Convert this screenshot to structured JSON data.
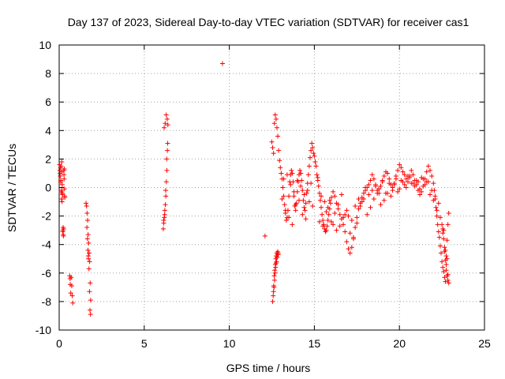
{
  "chart_data": {
    "type": "scatter",
    "title": "Day 137 of 2023, Sidereal Day-to-day VTEC variation (SDTVAR) for receiver cas1",
    "xlabel": "GPS time / hours",
    "ylabel": "SDTVAR / TECUs",
    "xlim": [
      0,
      25
    ],
    "ylim": [
      -10,
      10
    ],
    "xticks": [
      0,
      5,
      10,
      15,
      20,
      25
    ],
    "yticks": [
      -10,
      -8,
      -6,
      -4,
      -2,
      0,
      2,
      4,
      6,
      8,
      10
    ],
    "xtick_labels": [
      "0",
      "5",
      "10",
      "15",
      "20",
      "25"
    ],
    "ytick_labels": [
      "-10",
      "-8",
      "-6",
      "-4",
      "-2",
      "0",
      "2",
      "4",
      "6",
      "8",
      "10"
    ],
    "grid": true,
    "marker": "+",
    "color": "#ff0000",
    "series": [
      {
        "name": "SDTVAR",
        "x": [
          0.02,
          0.04,
          0.06,
          0.08,
          0.1,
          0.12,
          0.14,
          0.16,
          0.18,
          0.2,
          0.22,
          0.24,
          0.26,
          0.28,
          0.3,
          0.32,
          0.05,
          0.09,
          0.13,
          0.17,
          0.21,
          0.25,
          0.29,
          0.11,
          0.15,
          0.19,
          0.23,
          0.27,
          0.31,
          0.33,
          0.62,
          0.65,
          0.68,
          0.71,
          0.74,
          0.77,
          0.8,
          0.64,
          1.58,
          1.61,
          1.64,
          1.67,
          1.7,
          1.73,
          1.76,
          1.79,
          1.82,
          1.85,
          1.63,
          1.69,
          1.75,
          1.81,
          1.66,
          1.72,
          1.78,
          1.84,
          1.71,
          6.12,
          6.15,
          6.18,
          6.21,
          6.24,
          6.27,
          6.3,
          6.33,
          6.36,
          6.39,
          6.14,
          6.2,
          6.26,
          6.32,
          6.38,
          6.17,
          6.23,
          6.29,
          6.35,
          9.6,
          12.1,
          12.55,
          12.58,
          12.61,
          12.64,
          12.67,
          12.7,
          12.73,
          12.76,
          12.79,
          12.82,
          12.85,
          12.88,
          12.6,
          12.66,
          12.72,
          12.78,
          12.84,
          12.63,
          12.69,
          12.75,
          12.81,
          12.87,
          12.5,
          12.55,
          12.6,
          12.65,
          12.7,
          12.75,
          12.8,
          12.85,
          12.9,
          12.95,
          13.0,
          13.05,
          13.1,
          13.15,
          13.2,
          13.25,
          13.3,
          13.35,
          13.4,
          13.45,
          13.5,
          13.55,
          13.6,
          13.65,
          13.7,
          13.75,
          13.8,
          13.85,
          13.9,
          13.95,
          14.0,
          14.05,
          14.1,
          14.15,
          14.2,
          14.25,
          14.3,
          14.35,
          14.4,
          14.45,
          14.5,
          14.55,
          14.6,
          14.65,
          14.7,
          14.75,
          14.8,
          14.85,
          14.9,
          14.95,
          15.0,
          15.05,
          15.1,
          15.15,
          15.2,
          15.25,
          15.3,
          15.35,
          15.4,
          15.45,
          15.5,
          15.55,
          15.6,
          15.65,
          15.7,
          15.75,
          15.8,
          15.85,
          15.9,
          15.95,
          16.0,
          16.1,
          16.2,
          16.3,
          16.4,
          16.5,
          16.6,
          16.7,
          16.8,
          16.9,
          17.0,
          17.1,
          17.2,
          17.3,
          17.4,
          17.5,
          17.6,
          17.7,
          17.8,
          17.9,
          18.0,
          18.1,
          18.2,
          18.3,
          18.4,
          18.5,
          18.6,
          18.7,
          18.8,
          18.9,
          19.0,
          19.1,
          19.2,
          19.3,
          19.4,
          19.5,
          19.6,
          19.7,
          19.8,
          19.9,
          20.0,
          20.1,
          20.2,
          20.3,
          20.4,
          20.5,
          20.6,
          20.7,
          20.8,
          20.9,
          21.0,
          21.1,
          21.2,
          21.3,
          21.4,
          21.5,
          21.6,
          21.7,
          21.8,
          21.9,
          22.0,
          22.05,
          22.1,
          22.15,
          22.2,
          22.25,
          22.3,
          22.35,
          22.4,
          22.45,
          22.5,
          22.55,
          22.6,
          22.65,
          22.7,
          22.75,
          22.8,
          22.85,
          22.9,
          13.1,
          13.3,
          13.5,
          13.7,
          13.9,
          14.1,
          14.3,
          14.5,
          14.7,
          14.9,
          15.3,
          15.5,
          15.7,
          15.9,
          16.1,
          16.3,
          16.5,
          16.7,
          16.9,
          17.1,
          17.3,
          17.5,
          17.7,
          17.9,
          18.1,
          18.3,
          18.5,
          18.7,
          18.9,
          19.1,
          19.3,
          19.5,
          19.7,
          19.9,
          20.1,
          20.3,
          20.5,
          20.7,
          20.9,
          21.1,
          21.3,
          21.5,
          21.7,
          21.9,
          22.1,
          22.3,
          13.2,
          13.4,
          13.6,
          13.8,
          14.0,
          14.2,
          14.4,
          14.6,
          14.8,
          15.2,
          15.4,
          15.6,
          15.8,
          16.0,
          16.2,
          16.4,
          16.6,
          16.8,
          17.0,
          17.2,
          17.4,
          17.6,
          17.8,
          18.0,
          18.2,
          18.4,
          18.6,
          18.8,
          19.0,
          19.2,
          19.4,
          19.6,
          19.8,
          20.0,
          20.2,
          20.4,
          20.6,
          20.8,
          21.0,
          21.2,
          21.4,
          21.6,
          21.8,
          22.0,
          22.2,
          22.4,
          22.5,
          22.55,
          22.6,
          22.65,
          22.7,
          22.75,
          22.8,
          22.85,
          22.9,
          22.55,
          22.65,
          22.75,
          22.85,
          22.6,
          22.7,
          22.8
        ],
        "y": [
          1.6,
          1.2,
          0.8,
          1.4,
          0.5,
          -0.3,
          -0.8,
          1.1,
          0.2,
          -0.5,
          -3.0,
          -3.3,
          -2.9,
          0.9,
          1.3,
          -0.6,
          1.0,
          0.4,
          -0.2,
          -1.0,
          -3.1,
          -3.4,
          0.6,
          1.5,
          1.8,
          -0.4,
          -2.8,
          1.2,
          -0.1,
          -0.7,
          -6.2,
          -6.8,
          -7.4,
          -6.3,
          -6.9,
          -7.6,
          -8.1,
          -6.4,
          -1.1,
          -1.3,
          -1.8,
          -2.3,
          -3.3,
          -3.9,
          -4.6,
          -5.2,
          -6.7,
          -7.9,
          -2.8,
          -4.4,
          -5.7,
          -8.6,
          -3.6,
          -5.0,
          -7.3,
          -8.9,
          -4.8,
          -2.9,
          -2.5,
          -2.1,
          -1.6,
          -1.2,
          -0.6,
          0.4,
          1.2,
          2.6,
          4.4,
          -2.3,
          -1.9,
          -0.2,
          2.0,
          3.1,
          4.2,
          4.5,
          5.1,
          4.8,
          8.7,
          -3.4,
          -8.0,
          -7.6,
          -6.9,
          -6.2,
          -5.8,
          -5.4,
          -5.0,
          -4.8,
          -4.6,
          -4.6,
          -4.5,
          -4.7,
          -7.3,
          -6.5,
          -5.6,
          -5.2,
          -4.7,
          -7.0,
          -6.0,
          -5.3,
          -4.9,
          -4.6,
          3.2,
          2.8,
          2.4,
          4.5,
          5.1,
          4.8,
          4.2,
          3.6,
          2.6,
          1.9,
          1.4,
          1.0,
          0.6,
          0.0,
          -0.6,
          -1.2,
          -1.8,
          -2.3,
          -2.1,
          -1.6,
          -0.6,
          0.4,
          0.9,
          1.2,
          1.0,
          0.4,
          -0.6,
          -1.3,
          -1.6,
          -1.1,
          -0.3,
          0.4,
          0.9,
          1.2,
          1.0,
          0.5,
          -0.2,
          -0.9,
          -1.4,
          -1.6,
          -1.1,
          -0.4,
          0.3,
          0.9,
          1.5,
          2.1,
          2.6,
          3.1,
          2.8,
          2.4,
          2.2,
          1.8,
          1.5,
          0.9,
          0.5,
          0.1,
          -0.4,
          -0.9,
          -1.4,
          -1.9,
          -2.3,
          -2.6,
          -2.9,
          -3.1,
          -3.0,
          -2.7,
          -2.3,
          -1.9,
          -1.5,
          -1.1,
          -0.7,
          -0.3,
          -0.6,
          -1.1,
          -1.5,
          -1.9,
          -2.2,
          -2.6,
          -3.1,
          -3.8,
          -4.3,
          -4.6,
          -4.2,
          -3.6,
          -2.8,
          -2.1,
          -1.5,
          -1.1,
          -0.7,
          -0.4,
          -0.2,
          0.0,
          0.2,
          0.5,
          0.9,
          0.6,
          0.2,
          -0.2,
          -0.4,
          0.1,
          0.5,
          0.8,
          1.1,
          1.0,
          0.6,
          0.2,
          0.0,
          0.3,
          0.8,
          1.2,
          1.6,
          1.4,
          1.1,
          0.9,
          0.6,
          0.4,
          0.8,
          1.2,
          0.9,
          0.5,
          0.2,
          -0.2,
          -0.5,
          -0.3,
          0.1,
          0.6,
          1.1,
          1.5,
          1.2,
          0.8,
          0.3,
          -0.2,
          -0.8,
          -1.4,
          -2.0,
          -2.6,
          -3.1,
          -3.5,
          -4.1,
          -4.6,
          -5.2,
          -5.6,
          -5.9,
          -6.3,
          -6.6,
          -4.8,
          -3.7,
          -2.6,
          -1.8,
          -0.8,
          -1.6,
          -2.1,
          -2.6,
          -1.2,
          -0.9,
          -1.9,
          -2.2,
          -1.0,
          -1.3,
          -2.4,
          -2.7,
          -1.7,
          -0.9,
          -2.6,
          -3.0,
          -2.7,
          -2.1,
          -1.6,
          -3.2,
          -3.5,
          -2.5,
          -1.3,
          -0.8,
          -1.9,
          -1.4,
          -0.8,
          -0.4,
          -1.2,
          -0.9,
          -0.4,
          -0.6,
          0.2,
          -0.3,
          0.5,
          0.2,
          0.8,
          0.3,
          0.1,
          0.4,
          0.7,
          0.2,
          0.4,
          -0.2,
          -0.6,
          -1.1,
          0.6,
          0.9,
          0.2,
          -0.3,
          0.5,
          0.1,
          -0.5,
          -0.2,
          0.3,
          0.7,
          -0.6,
          -1.0,
          -1.4,
          -2.4,
          -1.8,
          -1.2,
          -0.5,
          -1.9,
          -2.0,
          -2.3,
          -1.3,
          -0.8,
          -1.0,
          0.0,
          -0.5,
          -0.2,
          0.1,
          -0.1,
          0.4,
          -0.4,
          0.3,
          -0.2,
          0.6,
          -0.1,
          0.4,
          0.0,
          0.7,
          0.3,
          0.5,
          -0.1,
          0.6,
          0.4,
          -0.5,
          -0.9,
          -1.6,
          -2.1,
          -2.6,
          -3.2,
          -3.6,
          -4.5,
          -5.1,
          -5.8,
          -6.2,
          -6.5,
          -6.7,
          -2.9,
          -4.2,
          -5.4,
          -6.1,
          -3.0,
          -4.4,
          -5.0
        ]
      }
    ]
  }
}
